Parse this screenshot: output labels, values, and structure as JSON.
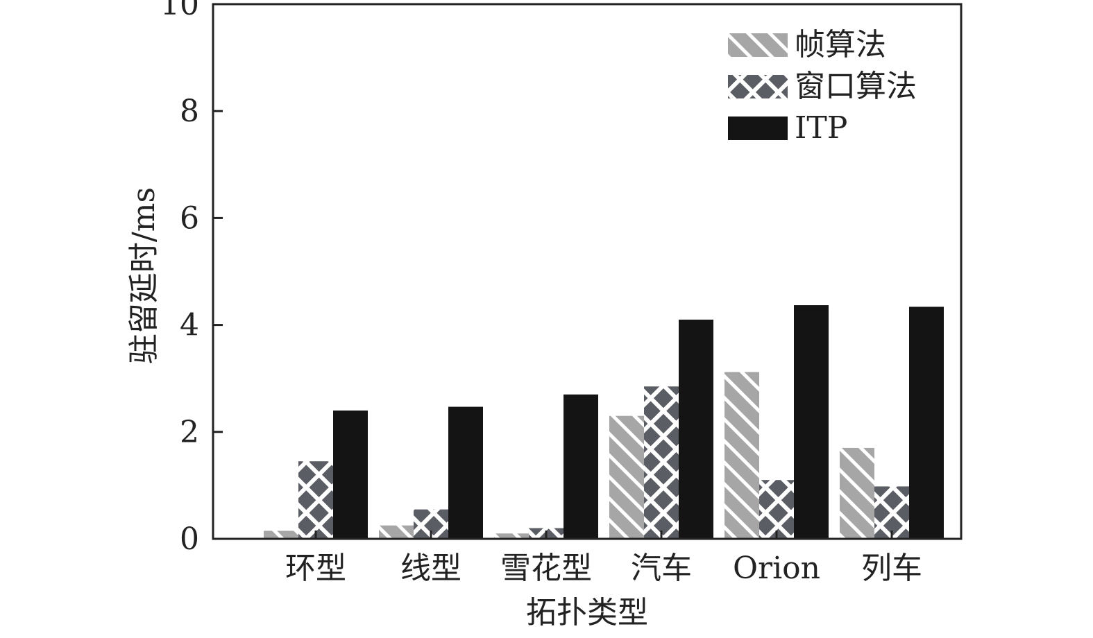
{
  "chart_data": {
    "type": "bar",
    "title": "",
    "xlabel": "拓扑类型",
    "ylabel": "驻留延时/ms",
    "ylim": [
      0,
      10
    ],
    "yticks": [
      0,
      2,
      4,
      6,
      8,
      10
    ],
    "categories": [
      "环型",
      "线型",
      "雪花型",
      "汽车",
      "Orion",
      "列车"
    ],
    "series": [
      {
        "name": "帧算法",
        "pattern": "diagonal-hatch",
        "color": "#a6a6a6",
        "values": [
          0.15,
          0.25,
          0.1,
          2.3,
          3.12,
          1.7
        ]
      },
      {
        "name": "窗口算法",
        "pattern": "cross-hatch",
        "color": "#5a5d63",
        "values": [
          1.45,
          0.55,
          0.2,
          2.85,
          1.1,
          0.98
        ]
      },
      {
        "name": "ITP",
        "pattern": "solid",
        "color": "#141414",
        "values": [
          2.4,
          2.47,
          2.7,
          4.1,
          4.37,
          4.34
        ]
      }
    ],
    "legend_position": "top-right",
    "grid": false
  }
}
